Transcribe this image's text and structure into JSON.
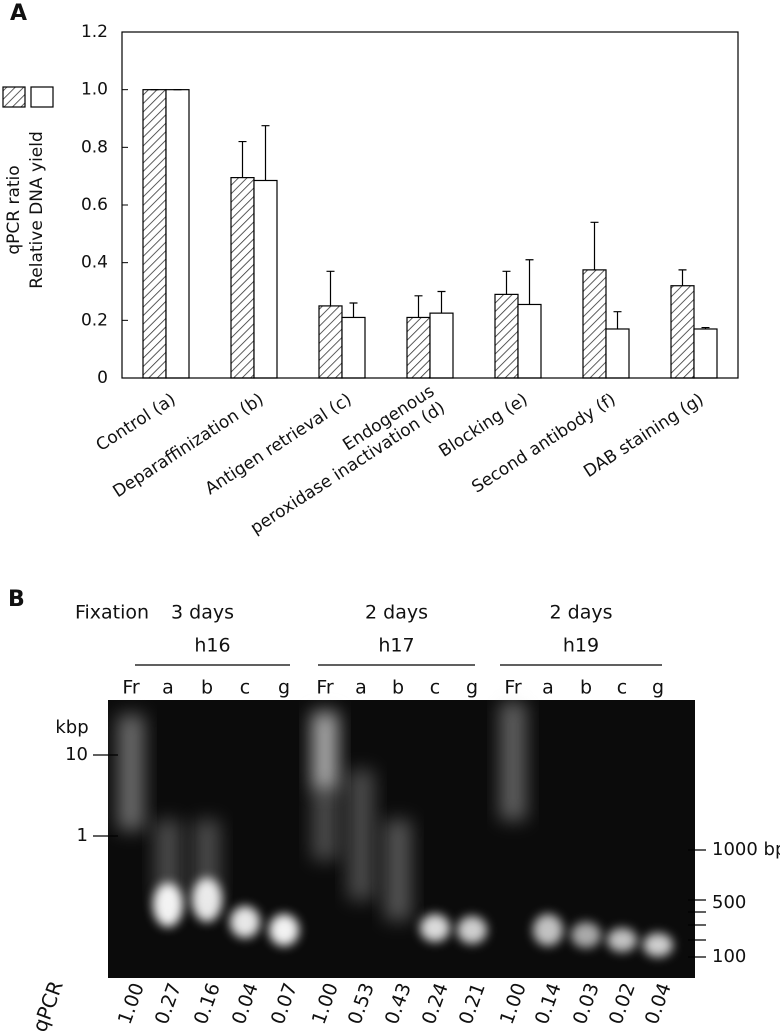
{
  "panel_a": "A",
  "chart_data": {
    "type": "bar",
    "y_label_lines": [
      "qPCR ratio",
      "Relative DNA yield"
    ],
    "categories": [
      "Control (a)",
      "Deparaffinization (b)",
      "Antigen retrieval (c)",
      "Endogenous\nperoxidase inactivation (d)",
      "Blocking (e)",
      "Second antibody (f)",
      "DAB staining (g)"
    ],
    "series": [
      {
        "name": "qPCR ratio",
        "color": "#000000",
        "hatch": true,
        "values": [
          1.0,
          0.695,
          0.25,
          0.21,
          0.29,
          0.375,
          0.32
        ],
        "errors": [
          0,
          0.125,
          0.12,
          0.075,
          0.08,
          0.165,
          0.055
        ]
      },
      {
        "name": "Relative DNA yield",
        "color": "#000000",
        "hatch": false,
        "values": [
          1.0,
          0.685,
          0.21,
          0.225,
          0.255,
          0.17,
          0.17
        ],
        "errors": [
          0,
          0.19,
          0.05,
          0.075,
          0.155,
          0.06,
          0.005
        ]
      }
    ],
    "ylim": [
      0,
      1.2
    ],
    "yticks": [
      0,
      0.2,
      0.4,
      0.6,
      0.8,
      {
        "value": 1,
        "label": "1.0"
      },
      1.2
    ],
    "grid": false
  },
  "panel_b": "B",
  "gel": {
    "fixation_label": "Fixation",
    "groups": [
      {
        "fixation": "3 days",
        "sample": "h16"
      },
      {
        "fixation": "2 days",
        "sample": "h17"
      },
      {
        "fixation": "2 days",
        "sample": "h19"
      }
    ],
    "lanes": [
      "Fr",
      "a",
      "b",
      "c",
      "g",
      "Fr",
      "a",
      "b",
      "c",
      "g",
      "Fr",
      "a",
      "b",
      "c",
      "g"
    ],
    "left_marker_unit": "kbp",
    "left_markers": [
      "10",
      "1"
    ],
    "right_markers": [
      "1000 bp",
      "500",
      "100"
    ],
    "qpcr_label": "qPCR",
    "qpcr_values": [
      "1.00",
      "0.27",
      "0.16",
      "0.04",
      "0.07",
      "1.00",
      "0.53",
      "0.43",
      "0.24",
      "0.21",
      "1.00",
      "0.14",
      "0.03",
      "0.02",
      "0.04"
    ]
  }
}
